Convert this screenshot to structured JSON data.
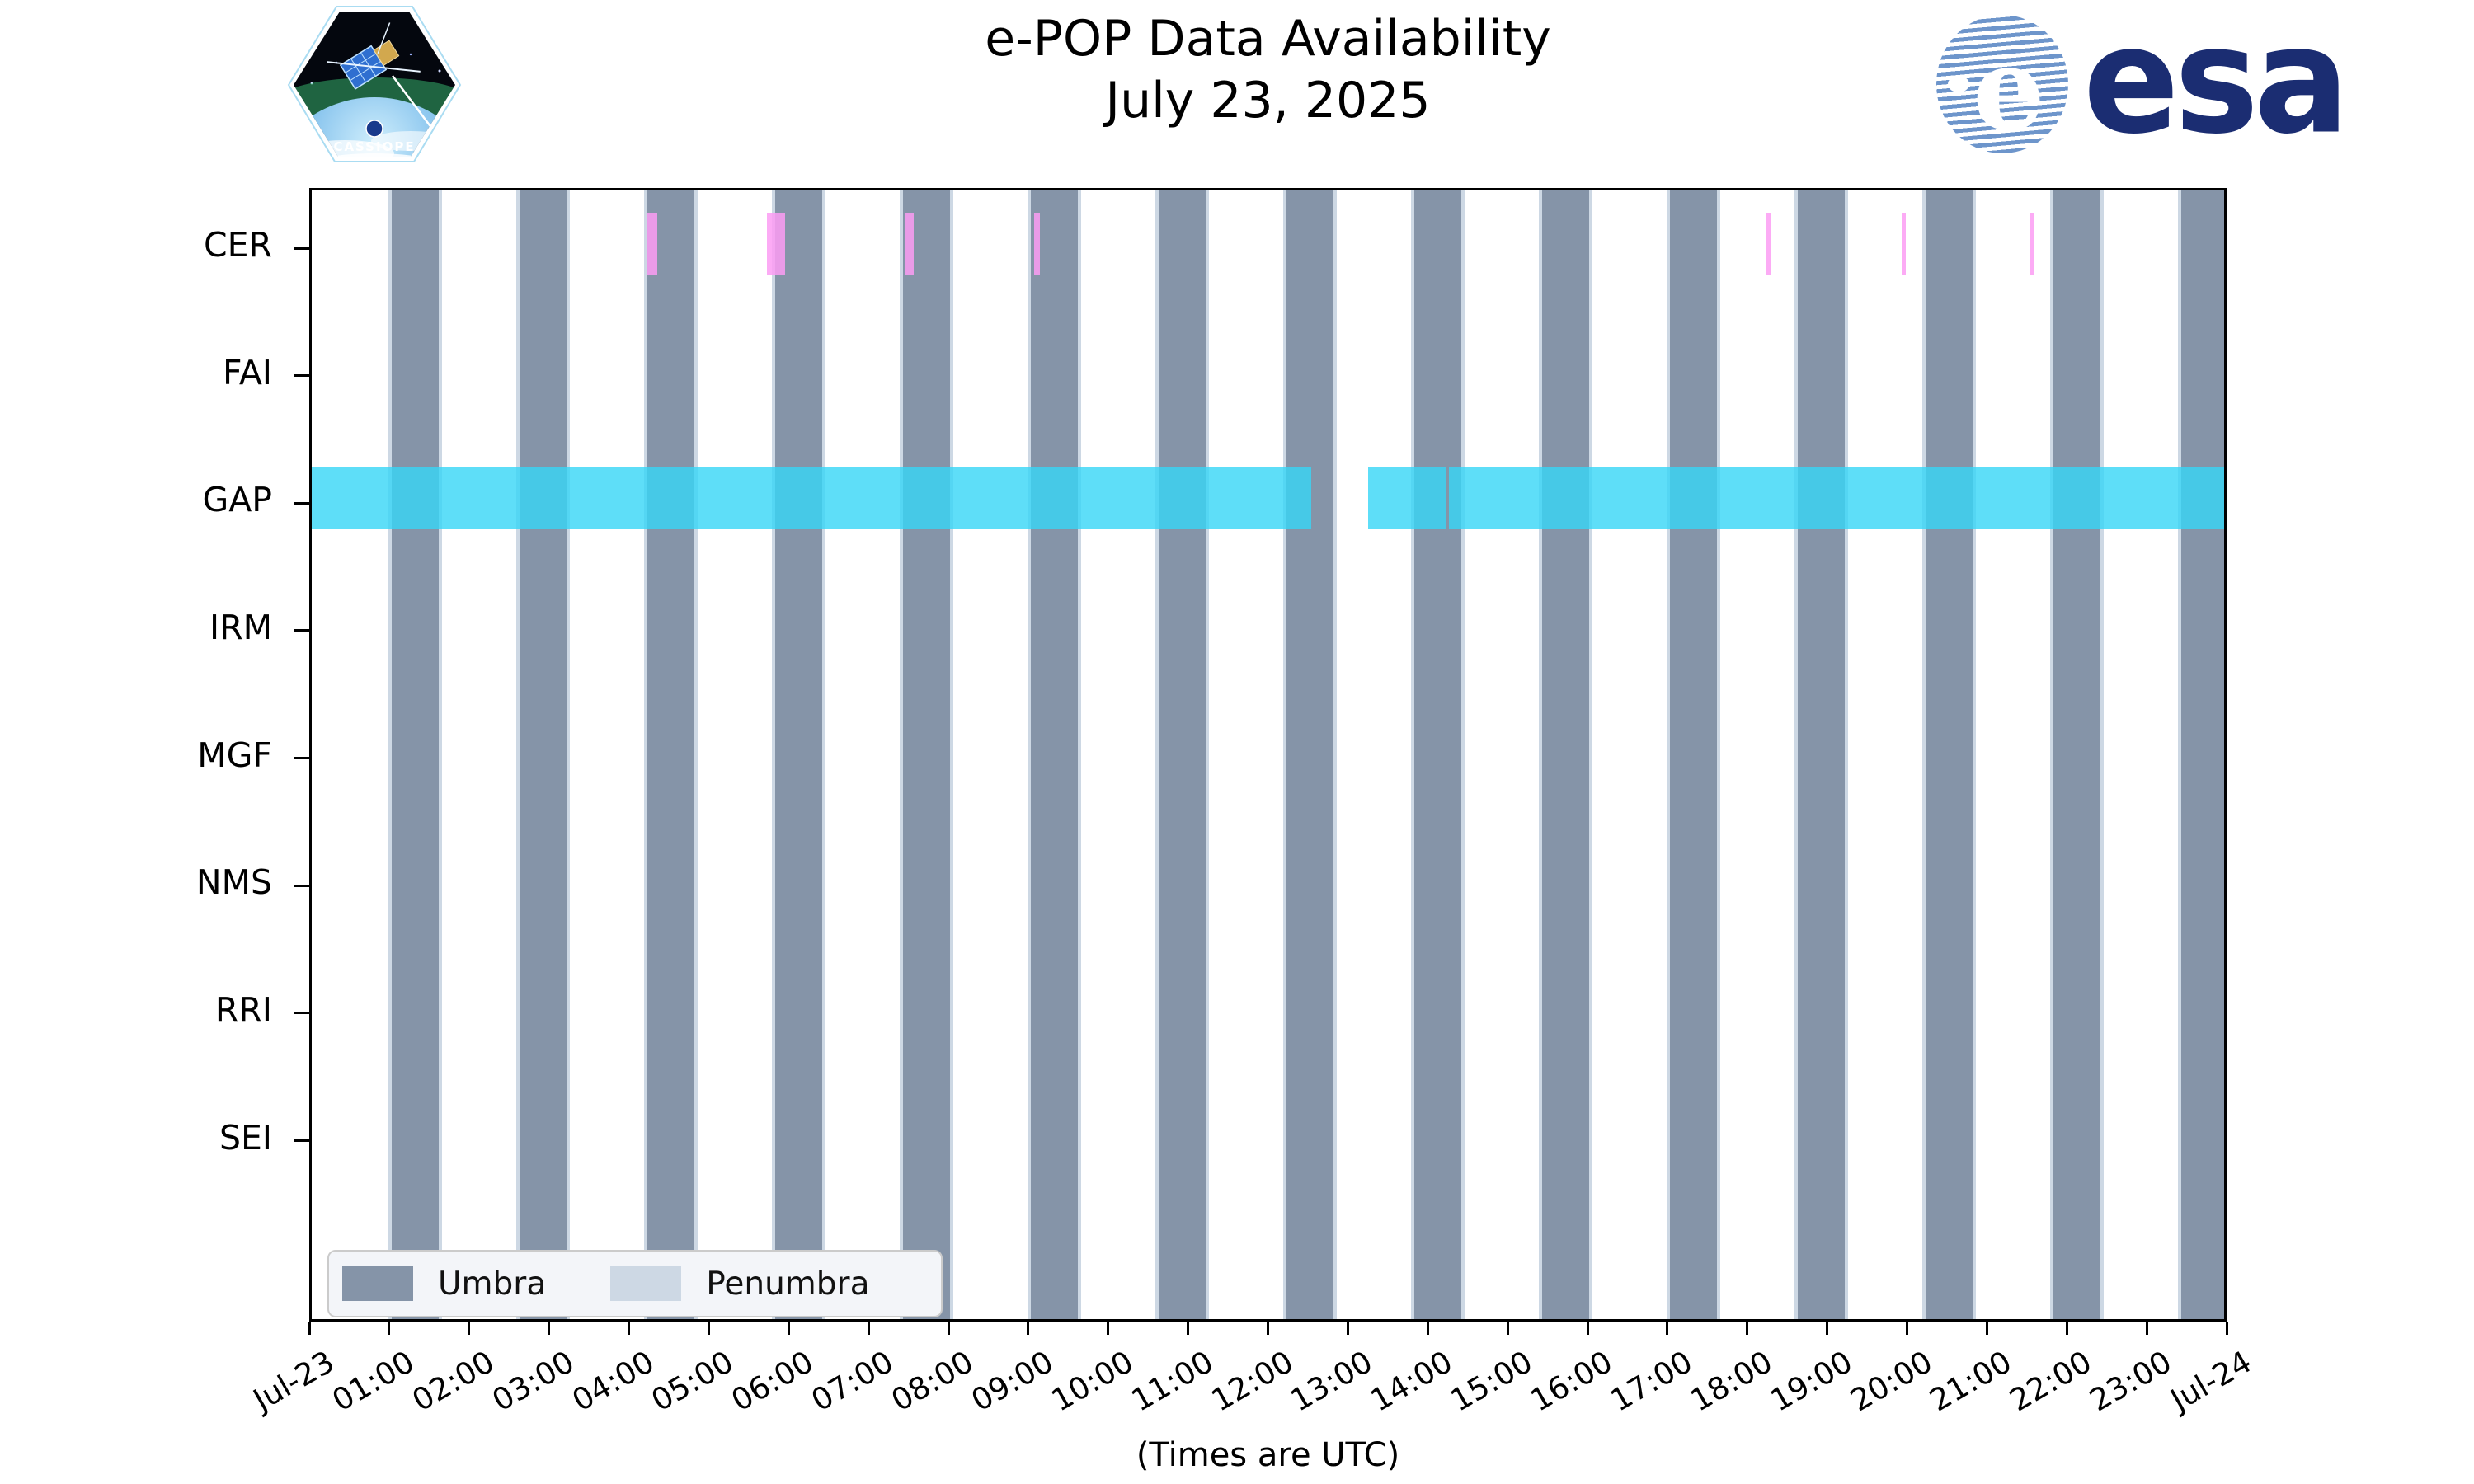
{
  "branding": {
    "cassiope_text": "CASSIOPE",
    "esa_text": "esa"
  },
  "chart_data": {
    "type": "timeline-availability-bars",
    "title": "e-POP Data Availability",
    "subtitle": "July 23, 2025",
    "x_axis": {
      "unit": "hours UTC",
      "range_hours": [
        0,
        24
      ],
      "tick_labels": [
        "Jul-23",
        "01:00",
        "02:00",
        "03:00",
        "04:00",
        "05:00",
        "06:00",
        "07:00",
        "08:00",
        "09:00",
        "10:00",
        "11:00",
        "12:00",
        "13:00",
        "14:00",
        "15:00",
        "16:00",
        "17:00",
        "18:00",
        "19:00",
        "20:00",
        "21:00",
        "22:00",
        "23:00",
        "Jul-24"
      ],
      "caption": "(Times are UTC)"
    },
    "y_axis": {
      "instruments": [
        "CER",
        "FAI",
        "GAP",
        "IRM",
        "MGF",
        "NMS",
        "RRI",
        "SEI"
      ]
    },
    "shadow_windows": {
      "umbra_hours": [
        [
          1.0,
          1.59
        ],
        [
          2.6,
          3.19
        ],
        [
          4.2,
          4.79
        ],
        [
          5.8,
          6.39
        ],
        [
          7.4,
          7.99
        ],
        [
          9.0,
          9.59
        ],
        [
          10.6,
          11.19
        ],
        [
          12.2,
          12.79
        ],
        [
          13.8,
          14.39
        ],
        [
          15.4,
          15.99
        ],
        [
          17.0,
          17.59
        ],
        [
          18.6,
          19.19
        ],
        [
          20.2,
          20.79
        ],
        [
          21.8,
          22.39
        ],
        [
          23.4,
          24.0
        ]
      ],
      "penumbra_strip_hours": 0.04
    },
    "availability_hours": {
      "CER": [
        [
          4.19,
          4.33
        ],
        [
          5.7,
          5.93
        ],
        [
          7.42,
          7.54
        ],
        [
          9.04,
          9.11
        ],
        [
          18.21,
          18.27
        ],
        [
          19.9,
          19.95
        ],
        [
          21.5,
          21.56
        ]
      ],
      "FAI": [],
      "GAP": [
        [
          0.0,
          12.51
        ],
        [
          13.22,
          14.2
        ],
        [
          14.23,
          24.0
        ]
      ],
      "IRM": [],
      "MGF": [],
      "NMS": [],
      "RRI": [],
      "SEI": []
    },
    "series_colors": {
      "CER": "rgba(252,156,243,0.85)",
      "GAP": "rgba(54,214,246,0.8)"
    },
    "colors": {
      "umbra": "#8594a8",
      "penumbra": "#cdd8e4",
      "axis": "#000000",
      "background": "#ffffff"
    },
    "legend": {
      "items": [
        {
          "label": "Umbra",
          "color": "#8594a8"
        },
        {
          "label": "Penumbra",
          "color": "#cdd8e4"
        }
      ]
    }
  }
}
